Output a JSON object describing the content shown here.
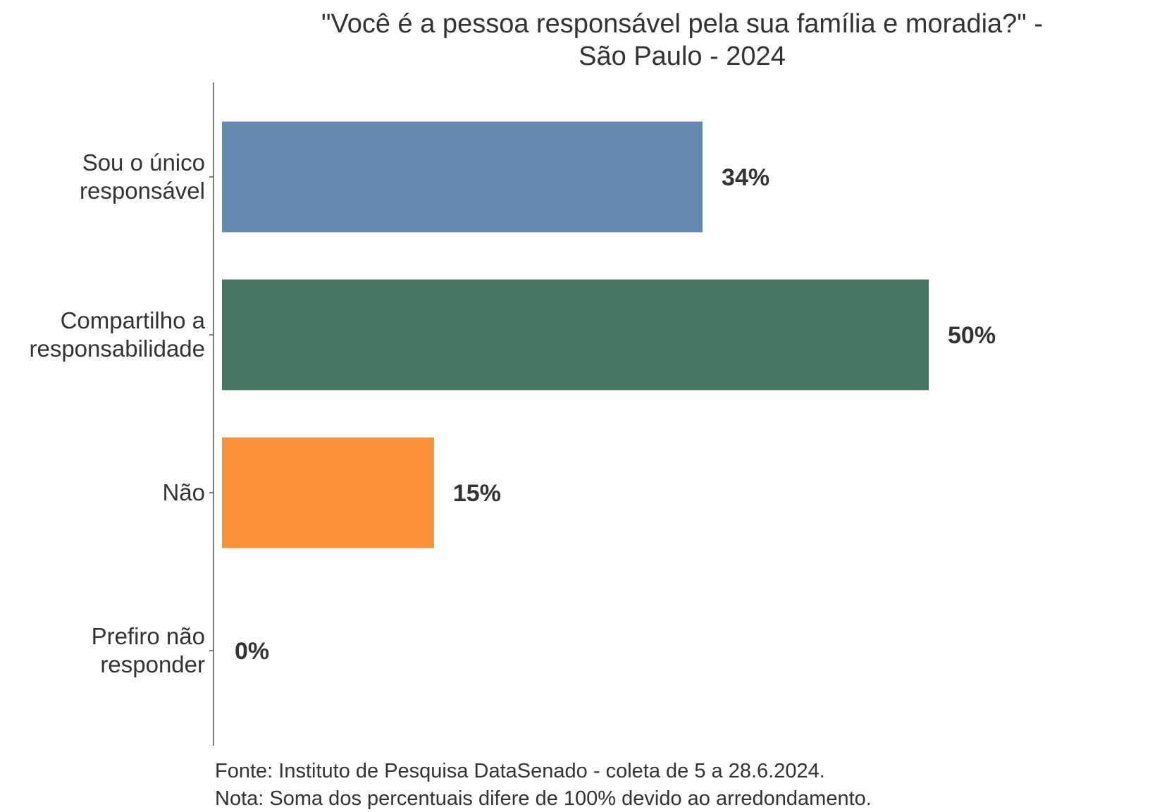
{
  "chart_data": {
    "type": "bar",
    "orientation": "horizontal",
    "title_lines": [
      "\"Você é a pessoa responsável pela sua família e moradia?\" -",
      "São Paulo - 2024"
    ],
    "categories": [
      [
        "Sou o único",
        "responsável"
      ],
      [
        "Compartilho a",
        "responsabilidade"
      ],
      [
        "Não"
      ],
      [
        "Prefiro não",
        "responder"
      ]
    ],
    "values": [
      34,
      50,
      15,
      0
    ],
    "value_labels": [
      "34%",
      "50%",
      "15%",
      "0%"
    ],
    "colors": [
      "#6688b0",
      "#467564",
      "#f9913b",
      "#999999"
    ],
    "xlim": [
      0,
      50
    ],
    "grid": false,
    "legend": false,
    "notes": [
      "Fonte: Instituto de Pesquisa DataSenado - coleta de 5 a 28.6.2024.",
      "Nota: Soma dos percentuais difere de 100% devido ao arredondamento."
    ]
  }
}
